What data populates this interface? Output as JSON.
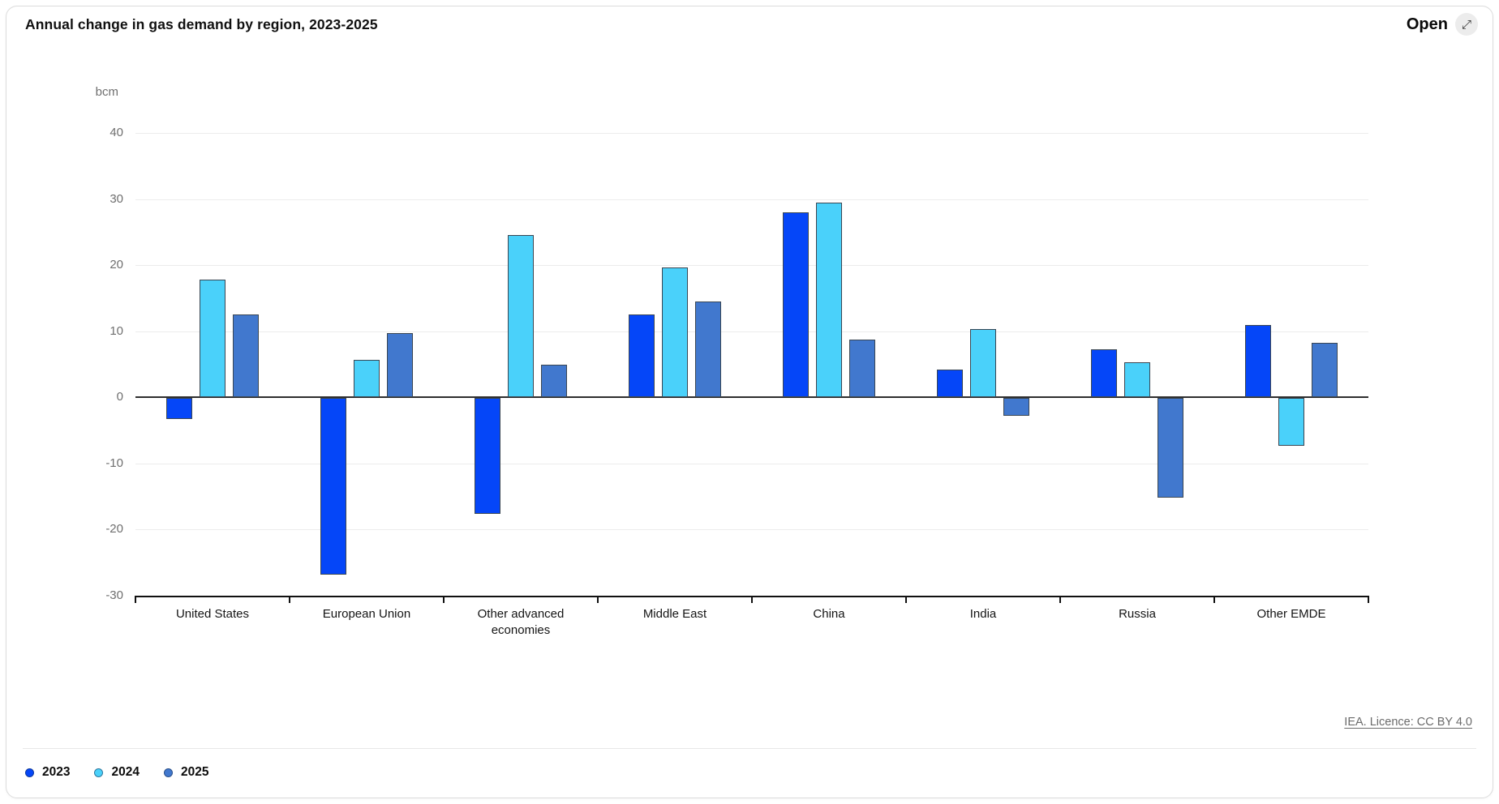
{
  "header": {
    "title": "Annual change in gas demand by region, 2023-2025",
    "open_label": "Open",
    "open_icon": "⤢"
  },
  "chart_data": {
    "type": "bar",
    "title": "Annual change in gas demand by region, 2023-2025",
    "ylabel": "bcm",
    "unit_label": "bcm",
    "categories": [
      "United States",
      "European Union",
      "Other advanced economies",
      "Middle East",
      "China",
      "India",
      "Russia",
      "Other EMDE"
    ],
    "series": [
      {
        "name": "2023",
        "color": "#0546F8",
        "values": [
          -3.1,
          -26.7,
          -17.5,
          12.5,
          28.0,
          4.2,
          7.3,
          11.0
        ]
      },
      {
        "name": "2024",
        "color": "#4AD1FA",
        "values": [
          17.8,
          5.7,
          24.5,
          19.6,
          29.5,
          10.3,
          5.3,
          -7.2
        ]
      },
      {
        "name": "2025",
        "color": "#4178CE",
        "values": [
          12.5,
          9.7,
          4.9,
          14.5,
          8.7,
          -2.7,
          -15.0,
          8.2
        ]
      }
    ],
    "y_ticks": [
      40,
      30,
      20,
      10,
      0,
      -10,
      -20,
      -30
    ],
    "ylim": [
      -30,
      40
    ],
    "grid": true,
    "legend_position": "bottom-left"
  },
  "footer": {
    "attribution": "IEA. Licence: CC BY 4.0"
  }
}
